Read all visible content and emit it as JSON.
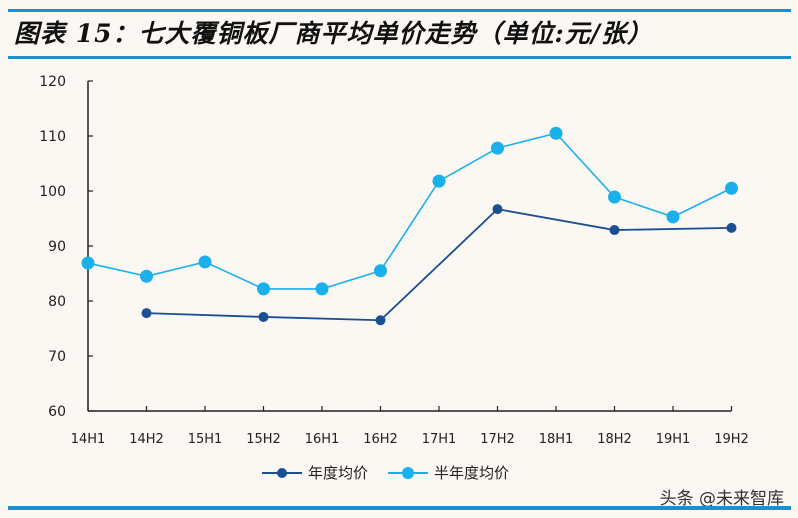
{
  "title": "图表 15：七大覆铜板厂商平均单价走势（单位:元/张）",
  "legend": [
    {
      "label": "年度均价",
      "color": "#1b4f93"
    },
    {
      "label": "半年度均价",
      "color": "#1ab0ec"
    }
  ],
  "watermark": "头条 @未来智库",
  "chart_data": {
    "type": "line",
    "title": "图表 15：七大覆铜板厂商平均单价走势（单位:元/张）",
    "xlabel": "",
    "ylabel": "元/张",
    "ylim": [
      60,
      120
    ],
    "yticks": [
      60,
      70,
      80,
      90,
      100,
      110,
      120
    ],
    "grid": false,
    "legend_position": "bottom",
    "categories": [
      "14H1",
      "14H2",
      "15H1",
      "15H2",
      "16H1",
      "16H2",
      "17H1",
      "17H2",
      "18H1",
      "18H2",
      "19H1",
      "19H2"
    ],
    "series": [
      {
        "name": "年度均价",
        "color": "#1b4f93",
        "values": [
          null,
          77.8,
          null,
          77.1,
          null,
          76.5,
          null,
          96.7,
          null,
          92.9,
          null,
          93.3
        ]
      },
      {
        "name": "半年度均价",
        "color": "#1ab0ec",
        "values": [
          86.9,
          84.5,
          87.1,
          82.2,
          82.2,
          85.5,
          101.8,
          107.8,
          110.5,
          98.9,
          95.3,
          100.5
        ]
      }
    ]
  }
}
